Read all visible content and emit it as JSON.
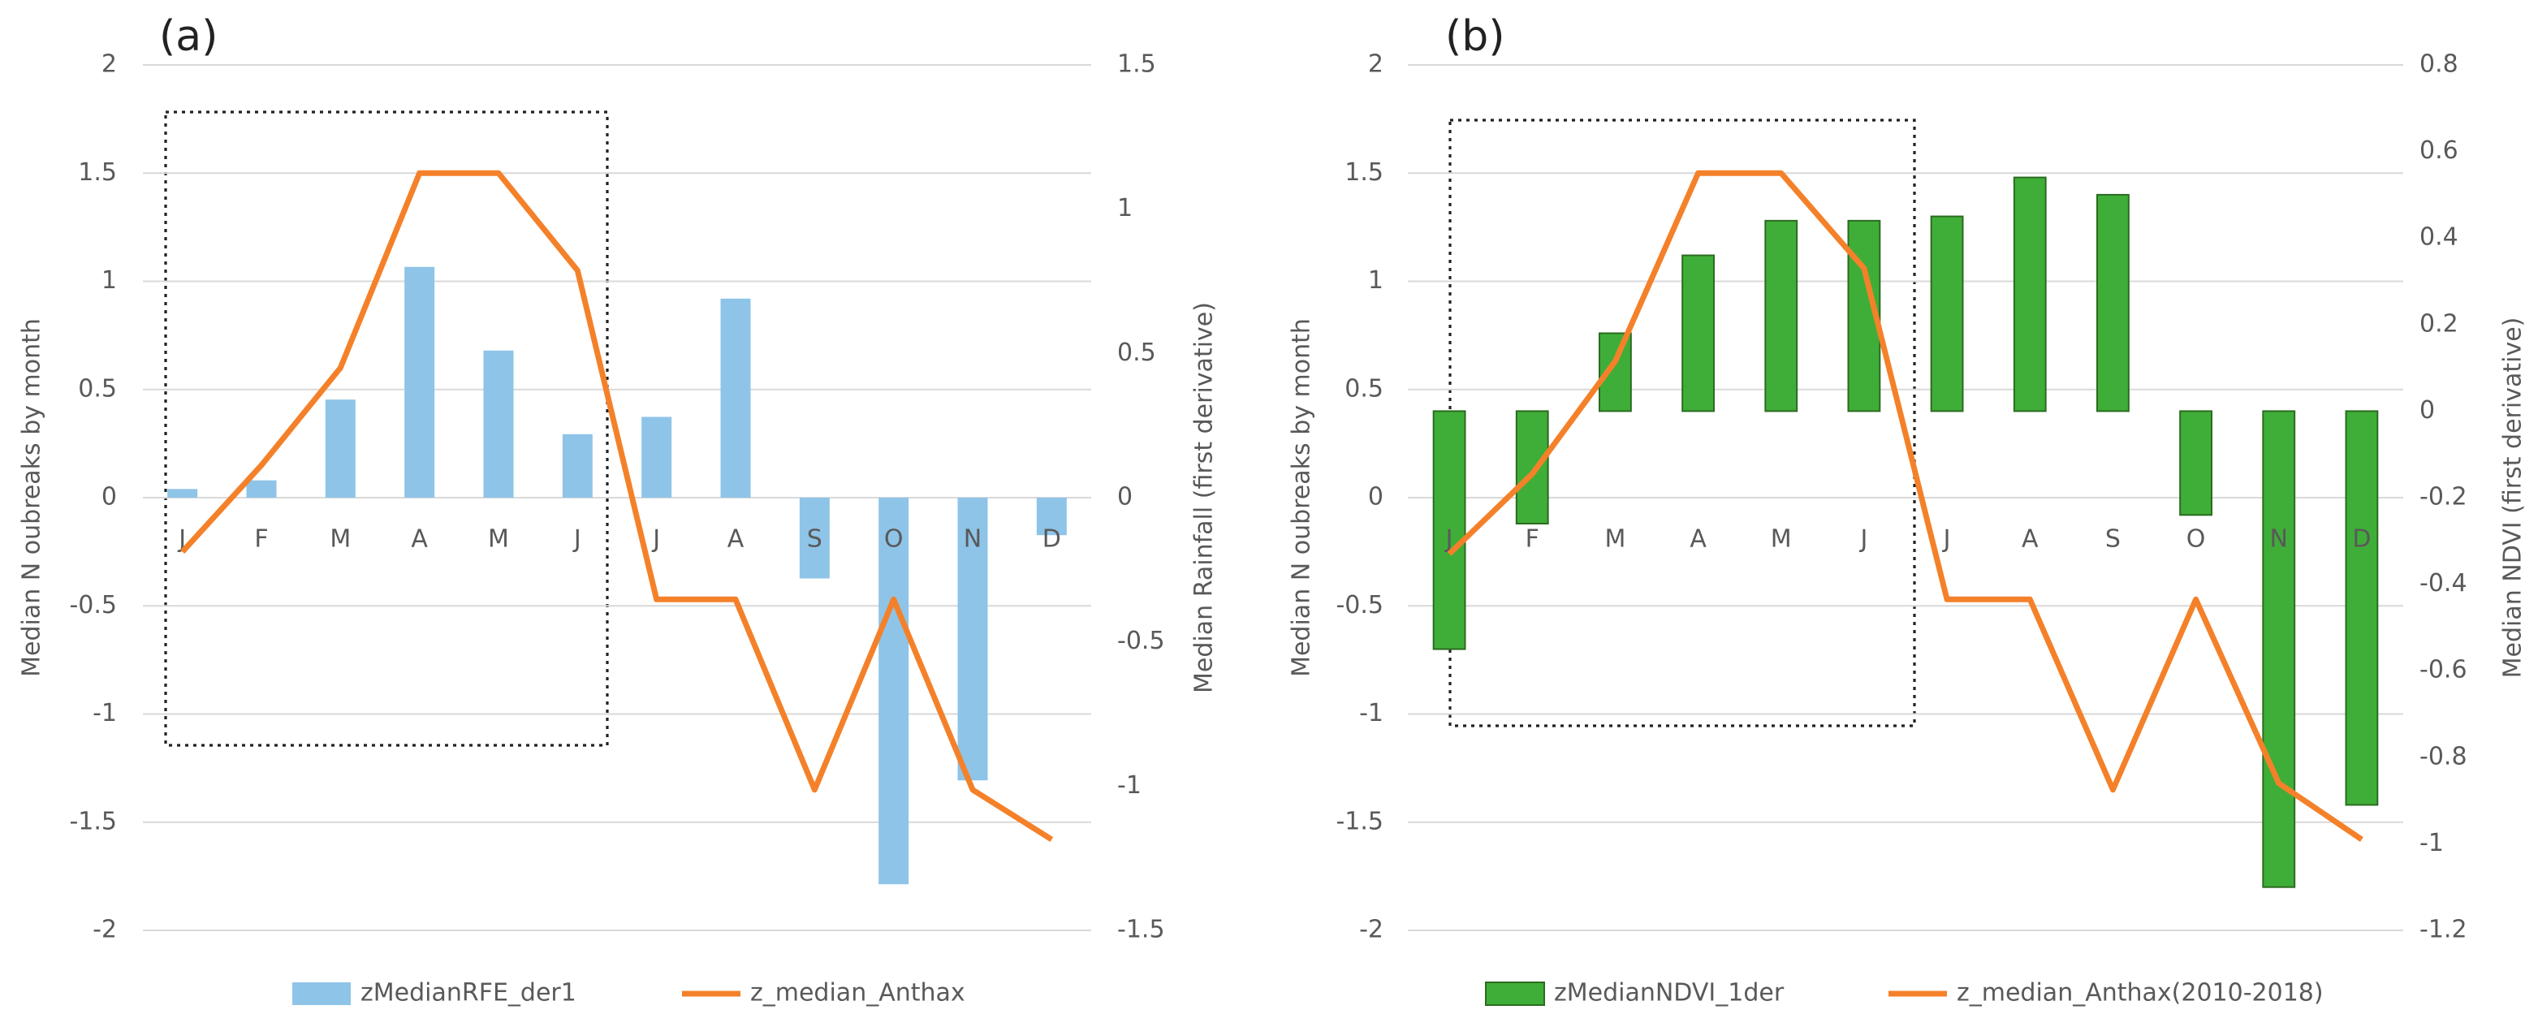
{
  "chart_data": [
    {
      "type": "combo",
      "panel_label": "(a)",
      "y_label": "Median N oubreaks by month",
      "y2_label": "Median Rainfall (first derivative)",
      "categories": [
        "J",
        "F",
        "M",
        "A",
        "M",
        "J",
        "J",
        "A",
        "S",
        "O",
        "N",
        "D"
      ],
      "ylim": [
        -2,
        2
      ],
      "yticks": [
        -2,
        -1.5,
        -1,
        -0.5,
        0,
        0.5,
        1,
        1.5,
        2
      ],
      "y2lim": [
        -1.5,
        1.5
      ],
      "y2ticks": [
        -1.5,
        -1,
        -0.5,
        0,
        0.5,
        1,
        1.5
      ],
      "grid": true,
      "legend": "bottom",
      "series": [
        {
          "name": "zMedianRFE_der1",
          "kind": "bar",
          "axis": "y2",
          "color": "#8ec4e8",
          "values": [
            0.03,
            0.06,
            0.34,
            0.8,
            0.51,
            0.22,
            0.28,
            0.69,
            -0.28,
            -1.34,
            -0.98,
            -0.13
          ]
        },
        {
          "name": "z_median_Anthax",
          "kind": "line",
          "axis": "y",
          "color": "#f4812a",
          "values": [
            -0.25,
            0.15,
            0.6,
            1.5,
            1.5,
            1.05,
            -0.47,
            -0.47,
            -1.35,
            -0.47,
            -1.35,
            -1.58
          ]
        }
      ]
    },
    {
      "type": "combo",
      "panel_label": "(b)",
      "y_label": "Median N oubreaks by month",
      "y2_label": "Median NDVI (first derivative)",
      "categories": [
        "J",
        "F",
        "M",
        "A",
        "M",
        "J",
        "J",
        "A",
        "S",
        "O",
        "N",
        "D"
      ],
      "ylim": [
        -2,
        2
      ],
      "yticks": [
        -2,
        -1.5,
        -1,
        -0.5,
        0,
        0.5,
        1,
        1.5,
        2
      ],
      "y2lim": [
        -1.2,
        0.8
      ],
      "y2ticks": [
        -1.2,
        -1,
        -0.8,
        -0.6,
        -0.4,
        -0.2,
        0,
        0.2,
        0.4,
        0.6,
        0.8
      ],
      "grid": true,
      "legend": "bottom",
      "series": [
        {
          "name": "zMedianNDVI_1der",
          "kind": "bar",
          "axis": "y2",
          "color": "#3fae38",
          "values": [
            -0.55,
            -0.26,
            0.18,
            0.36,
            0.44,
            0.44,
            0.45,
            0.54,
            0.5,
            -0.24,
            -1.1,
            -0.91
          ]
        },
        {
          "name": "z_median_Anthax(2010-2018)",
          "kind": "line",
          "axis": "y",
          "color": "#f4812a",
          "values": [
            -0.26,
            0.11,
            0.63,
            1.5,
            1.5,
            1.06,
            -0.47,
            -0.47,
            -1.35,
            -0.47,
            -1.32,
            -1.58
          ]
        }
      ]
    }
  ]
}
